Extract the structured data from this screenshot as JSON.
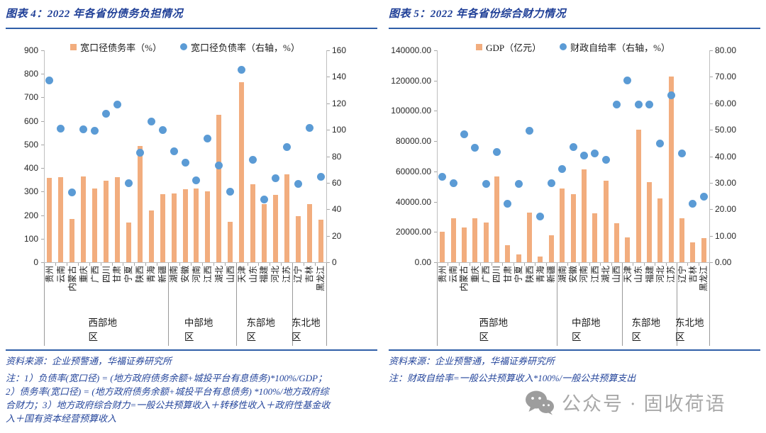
{
  "panels": [
    {
      "title": "图表 4：2022 年各省份债务负担情况",
      "source": "资料来源：企业预警通，华福证券研究所",
      "note": "注：1）负债率(宽口径) = (地方政府债务余额+城投平台有息债务)*100%/GDP；2）债务率(宽口径) = (地方政府债务余额+城投平台有息债务) *100%/地方政府综合财力；3）地方政府综合财力=一般公共预算收入＋转移性收入＋政府性基金收入＋国有资本经营预算收入"
    },
    {
      "title": "图表 5：2022 年各省份综合财力情况",
      "source": "资料来源：企业预警通，华福证券研究所",
      "note": "注：财政自给率=一般公共预算收入*100%/一般公共预算支出"
    }
  ],
  "watermark": {
    "icon": "wechat-icon",
    "text": "公众号 · 固收荷语",
    "color": "#999999"
  },
  "colors": {
    "bar": "#F2AD7E",
    "dot": "#5B9BD5",
    "accent_blue": "#2F5EA8",
    "text_blue": "#24459B"
  },
  "chart_data": [
    {
      "type": "bar+scatter",
      "title": "2022 年各省份债务负担情况",
      "categories": [
        "贵州",
        "云南",
        "内蒙古",
        "重庆",
        "广西",
        "四川",
        "甘肃",
        "宁夏",
        "陕西",
        "青海",
        "新疆",
        "湖南",
        "安徽",
        "河南",
        "江西",
        "湖北",
        "山西",
        "天津",
        "山东",
        "福建",
        "河北",
        "江苏",
        "辽宁",
        "吉林",
        "黑龙江"
      ],
      "category_groups": [
        {
          "label": "西部地区",
          "count": 11
        },
        {
          "label": "中部地区",
          "count": 6
        },
        {
          "label": "东部地区",
          "count": 5
        },
        {
          "label": "东北地区",
          "count": 3
        }
      ],
      "series": [
        {
          "name": "宽口径债务率（%）",
          "type": "bar",
          "axis": "left",
          "color": "#F2AD7E",
          "values": [
            357,
            362,
            184,
            364,
            314,
            347,
            362,
            168,
            493,
            219,
            289,
            292,
            310,
            314,
            300,
            626,
            171,
            765,
            330,
            246,
            287,
            374,
            196,
            246,
            180
          ]
        },
        {
          "name": "宽口径负债率（右轴，%）",
          "type": "scatter",
          "axis": "right",
          "color": "#5B9BD5",
          "values": [
            137.5,
            101,
            52.5,
            100.5,
            99,
            112,
            119,
            59.5,
            82.5,
            106,
            100,
            84,
            75,
            62,
            93.5,
            73,
            53.5,
            145.5,
            77.5,
            47.5,
            63.5,
            87,
            59,
            101.5,
            64.5
          ]
        }
      ],
      "left_axis": {
        "min": 0,
        "max": 900,
        "step": 100,
        "format": "int"
      },
      "right_axis": {
        "min": 0,
        "max": 160,
        "step": 20,
        "format": "int"
      },
      "grid": false,
      "legend_position": "top-center"
    },
    {
      "type": "bar+scatter",
      "title": "2022 年各省份综合财力情况",
      "categories": [
        "贵州",
        "云南",
        "内蒙古",
        "重庆",
        "广西",
        "四川",
        "甘肃",
        "宁夏",
        "陕西",
        "青海",
        "新疆",
        "湖南",
        "安徽",
        "河南",
        "江西",
        "湖北",
        "山西",
        "天津",
        "山东",
        "福建",
        "河北",
        "江苏",
        "辽宁",
        "吉林",
        "黑龙江"
      ],
      "category_groups": [
        {
          "label": "西部地区",
          "count": 11
        },
        {
          "label": "中部地区",
          "count": 6
        },
        {
          "label": "东部地区",
          "count": 5
        },
        {
          "label": "东北地区",
          "count": 3
        }
      ],
      "series": [
        {
          "name": "GDP（亿元）",
          "type": "bar",
          "axis": "left",
          "color": "#F2AD7E",
          "values": [
            20165,
            28954,
            23159,
            29129,
            26301,
            56750,
            11202,
            5070,
            32773,
            3610,
            17741,
            48670,
            45045,
            61345,
            32075,
            53735,
            25643,
            16311,
            87435,
            53110,
            42370,
            122876,
            28975,
            13070,
            15901
          ]
        },
        {
          "name": "财政自给率（右轴，%）",
          "type": "scatter",
          "axis": "right",
          "color": "#5B9BD5",
          "values": [
            32.3,
            29.8,
            48.4,
            43.3,
            29.6,
            41.5,
            22.2,
            29.6,
            49.5,
            17.2,
            29.8,
            35.1,
            43.6,
            40.3,
            41.1,
            38.7,
            59.6,
            68.5,
            59.4,
            59.6,
            44.7,
            62.9,
            41.1,
            22.0,
            24.7
          ]
        }
      ],
      "left_axis": {
        "min": 0,
        "max": 140000,
        "step": 20000,
        "format": "2dp"
      },
      "right_axis": {
        "min": 0,
        "max": 80,
        "step": 10,
        "format": "2dp"
      },
      "grid": false,
      "legend_position": "top-center"
    }
  ]
}
